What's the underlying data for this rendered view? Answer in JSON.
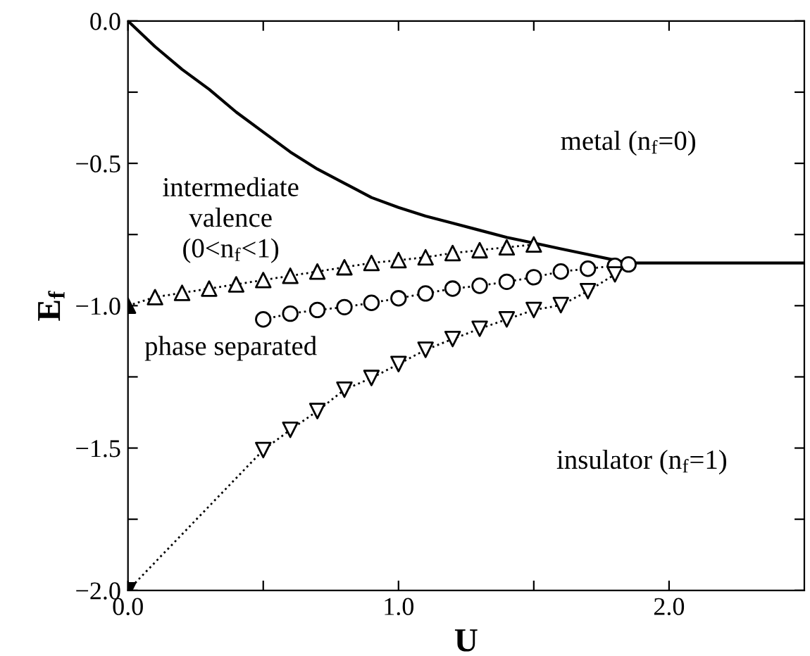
{
  "chart_data": {
    "type": "line",
    "xlabel": "U",
    "ylabel": "E$_{f}$",
    "xlim": [
      0,
      2.5
    ],
    "ylim": [
      -2.0,
      0.0
    ],
    "xticks": [
      {
        "value": 0,
        "label": "0.0"
      },
      {
        "value": 0.5,
        "label": null
      },
      {
        "value": 1.0,
        "label": "1.0"
      },
      {
        "value": 1.5,
        "label": null
      },
      {
        "value": 2.0,
        "label": "2.0"
      }
    ],
    "yticks": [
      {
        "value": -2.0,
        "label": "−2.0"
      },
      {
        "value": -1.75,
        "label": null
      },
      {
        "value": -1.5,
        "label": "−1.5"
      },
      {
        "value": -1.25,
        "label": null
      },
      {
        "value": -1.0,
        "label": "−1.0"
      },
      {
        "value": -0.75,
        "label": null
      },
      {
        "value": -0.5,
        "label": "−0.5"
      },
      {
        "value": -0.25,
        "label": null
      },
      {
        "value": 0.0,
        "label": "0.0"
      }
    ],
    "grid": false,
    "legend": false,
    "series": [
      {
        "color": "#000000",
        "line_style": "solid",
        "marker": "none",
        "x": [
          0,
          0.1,
          0.2,
          0.3,
          0.4,
          0.5,
          0.6,
          0.7,
          0.8,
          0.9,
          1.0,
          1.1,
          1.2,
          1.3,
          1.4,
          1.5,
          1.6,
          1.7,
          1.8,
          1.85,
          2.5
        ],
        "values": [
          0,
          -0.09,
          -0.17,
          -0.24,
          -0.32,
          -0.39,
          -0.46,
          -0.52,
          -0.57,
          -0.62,
          -0.655,
          -0.685,
          -0.71,
          -0.735,
          -0.76,
          -0.78,
          -0.8,
          -0.82,
          -0.84,
          -0.85,
          -0.85
        ]
      },
      {
        "color": "#000000",
        "line_style": "dotted",
        "marker": "triangle",
        "colors": [
          "#000000",
          "#ffffff",
          "#ffffff",
          "#ffffff",
          "#ffffff",
          "#ffffff",
          "#ffffff",
          "#ffffff",
          "#ffffff",
          "#ffffff",
          "#ffffff",
          "#ffffff",
          "#ffffff",
          "#ffffff",
          "#ffffff",
          "#ffffff"
        ],
        "x": [
          0,
          0.1,
          0.2,
          0.3,
          0.4,
          0.5,
          0.6,
          0.7,
          0.8,
          0.9,
          1.0,
          1.1,
          1.2,
          1.3,
          1.4,
          1.5
        ],
        "values": [
          -1.0,
          -0.97,
          -0.955,
          -0.94,
          -0.925,
          -0.91,
          -0.895,
          -0.88,
          -0.865,
          -0.85,
          -0.84,
          -0.83,
          -0.815,
          -0.805,
          -0.795,
          -0.785
        ]
      },
      {
        "color": "#000000",
        "line_style": "dotted",
        "marker": "circle",
        "x": [
          0.5,
          0.6,
          0.7,
          0.8,
          0.9,
          1.0,
          1.1,
          1.2,
          1.3,
          1.4,
          1.5,
          1.6,
          1.7,
          1.8,
          1.85
        ],
        "values": [
          -1.048,
          -1.028,
          -1.015,
          -1.005,
          -0.99,
          -0.974,
          -0.957,
          -0.94,
          -0.93,
          -0.916,
          -0.9,
          -0.88,
          -0.87,
          -0.86,
          -0.855
        ]
      },
      {
        "color": "#000000",
        "line_style": "dotted",
        "marker": "triangle_down",
        "colors": [
          "#000000",
          "#ffffff",
          "#ffffff",
          "#ffffff",
          "#ffffff",
          "#ffffff",
          "#ffffff",
          "#ffffff",
          "#ffffff",
          "#ffffff",
          "#ffffff",
          "#ffffff",
          "#ffffff",
          "#ffffff",
          "#ffffff"
        ],
        "x": [
          0,
          0.5,
          0.6,
          0.7,
          0.8,
          0.9,
          1.0,
          1.1,
          1.2,
          1.3,
          1.4,
          1.5,
          1.6,
          1.7,
          1.8
        ],
        "values": [
          -2.0,
          -1.507,
          -1.436,
          -1.37,
          -1.295,
          -1.254,
          -1.205,
          -1.155,
          -1.117,
          -1.081,
          -1.048,
          -1.015,
          -0.998,
          -0.949,
          -0.89
        ]
      }
    ],
    "annotations": [
      "metal (n$_{f}$=0)",
      "intermediate\nvalence\n(0<n$_{f}$<1)",
      "phase separated",
      "insulator (n$_{f}$=1)"
    ]
  }
}
